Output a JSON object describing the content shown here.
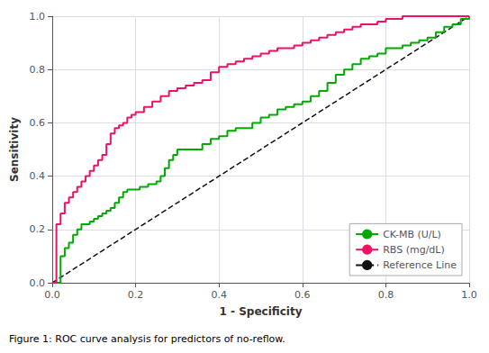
{
  "chart_data": {
    "type": "line",
    "xlabel": "1 - Specificity",
    "ylabel": "Sensitivity",
    "caption": "Figure 1: ROC curve analysis for predictors of no-reflow.",
    "xlim": [
      0.0,
      1.0
    ],
    "ylim": [
      0.0,
      1.0
    ],
    "xticks": [
      {
        "value": 0.0,
        "label": "0.0"
      },
      0.2,
      0.4,
      0.6,
      0.8,
      {
        "value": 1.0,
        "label": "1.0"
      }
    ],
    "yticks": [
      {
        "value": 0.0,
        "label": "0.0"
      },
      0.2,
      0.4,
      0.6,
      0.8,
      {
        "value": 1.0,
        "label": "1.0"
      }
    ],
    "grid": true,
    "legend": "lower right",
    "series": [
      {
        "name": "CK-MB (U/L)",
        "color": "#00aa00",
        "line_style": "step",
        "x": [
          0.0,
          0.02,
          0.03,
          0.04,
          0.05,
          0.06,
          0.07,
          0.08,
          0.09,
          0.1,
          0.11,
          0.12,
          0.13,
          0.14,
          0.15,
          0.16,
          0.17,
          0.18,
          0.19,
          0.2,
          0.21,
          0.22,
          0.23,
          0.24,
          0.25,
          0.26,
          0.27,
          0.28,
          0.29,
          0.3,
          0.32,
          0.34,
          0.36,
          0.38,
          0.4,
          0.42,
          0.44,
          0.46,
          0.48,
          0.5,
          0.52,
          0.54,
          0.56,
          0.58,
          0.6,
          0.62,
          0.64,
          0.66,
          0.68,
          0.7,
          0.72,
          0.74,
          0.76,
          0.78,
          0.8,
          0.82,
          0.84,
          0.86,
          0.88,
          0.9,
          0.92,
          0.94,
          0.96,
          0.98,
          1.0
        ],
        "values": [
          0.0,
          0.1,
          0.13,
          0.15,
          0.18,
          0.2,
          0.22,
          0.22,
          0.23,
          0.24,
          0.25,
          0.26,
          0.27,
          0.28,
          0.3,
          0.32,
          0.34,
          0.35,
          0.35,
          0.35,
          0.36,
          0.36,
          0.37,
          0.37,
          0.38,
          0.4,
          0.43,
          0.46,
          0.48,
          0.5,
          0.5,
          0.5,
          0.52,
          0.54,
          0.55,
          0.57,
          0.58,
          0.58,
          0.6,
          0.62,
          0.63,
          0.65,
          0.66,
          0.67,
          0.68,
          0.7,
          0.72,
          0.75,
          0.78,
          0.8,
          0.82,
          0.84,
          0.85,
          0.86,
          0.88,
          0.88,
          0.89,
          0.9,
          0.91,
          0.92,
          0.94,
          0.96,
          0.97,
          0.99,
          1.0
        ]
      },
      {
        "name": "RBS (mg/dL)",
        "color": "#ee1166",
        "line_style": "step",
        "x": [
          0.0,
          0.01,
          0.02,
          0.03,
          0.04,
          0.05,
          0.06,
          0.07,
          0.08,
          0.09,
          0.1,
          0.11,
          0.12,
          0.13,
          0.14,
          0.15,
          0.16,
          0.17,
          0.18,
          0.19,
          0.2,
          0.22,
          0.24,
          0.26,
          0.28,
          0.3,
          0.32,
          0.34,
          0.36,
          0.38,
          0.4,
          0.42,
          0.44,
          0.46,
          0.48,
          0.5,
          0.52,
          0.54,
          0.56,
          0.58,
          0.6,
          0.62,
          0.64,
          0.66,
          0.68,
          0.7,
          0.72,
          0.74,
          0.76,
          0.78,
          0.8,
          0.82,
          0.84,
          0.86,
          0.88,
          0.9,
          0.92,
          0.94,
          0.96,
          0.98,
          1.0
        ],
        "values": [
          0.0,
          0.22,
          0.26,
          0.3,
          0.32,
          0.34,
          0.36,
          0.38,
          0.4,
          0.42,
          0.44,
          0.46,
          0.48,
          0.52,
          0.56,
          0.58,
          0.59,
          0.6,
          0.62,
          0.63,
          0.64,
          0.66,
          0.68,
          0.7,
          0.72,
          0.73,
          0.74,
          0.75,
          0.76,
          0.79,
          0.81,
          0.82,
          0.83,
          0.84,
          0.85,
          0.86,
          0.87,
          0.88,
          0.88,
          0.89,
          0.9,
          0.91,
          0.92,
          0.93,
          0.94,
          0.95,
          0.96,
          0.97,
          0.97,
          0.98,
          0.99,
          0.99,
          1.0,
          1.0,
          1.0,
          1.0,
          1.0,
          1.0,
          1.0,
          1.0,
          1.0
        ]
      },
      {
        "name": "Reference Line",
        "color": "#111111",
        "line_style": "dashed",
        "x": [
          0,
          1
        ],
        "values": [
          0,
          1
        ]
      }
    ]
  }
}
